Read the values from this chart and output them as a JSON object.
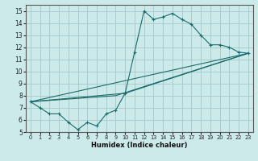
{
  "xlabel": "Humidex (Indice chaleur)",
  "ylabel": "",
  "bg_color": "#cceaea",
  "grid_color": "#aacccc",
  "line_color": "#1a6b6b",
  "xlim": [
    -0.5,
    23.5
  ],
  "ylim": [
    5,
    15.5
  ],
  "xticks": [
    0,
    1,
    2,
    3,
    4,
    5,
    6,
    7,
    8,
    9,
    10,
    11,
    12,
    13,
    14,
    15,
    16,
    17,
    18,
    19,
    20,
    21,
    22,
    23
  ],
  "yticks": [
    5,
    6,
    7,
    8,
    9,
    10,
    11,
    12,
    13,
    14,
    15
  ],
  "line1_x": [
    0,
    1,
    2,
    3,
    4,
    5,
    6,
    7,
    8,
    9,
    10,
    11,
    12,
    13,
    14,
    15,
    16,
    17,
    18,
    19,
    20,
    21,
    22,
    23
  ],
  "line1_y": [
    7.5,
    7.0,
    6.5,
    6.5,
    5.8,
    5.2,
    5.8,
    5.5,
    6.5,
    6.8,
    8.2,
    11.6,
    15.0,
    14.3,
    14.5,
    14.8,
    14.3,
    13.9,
    13.0,
    12.2,
    12.2,
    12.0,
    11.6,
    11.5
  ],
  "line2_x": [
    0,
    23
  ],
  "line2_y": [
    7.5,
    11.5
  ],
  "line3_x": [
    0,
    10,
    23
  ],
  "line3_y": [
    7.5,
    8.2,
    11.5
  ],
  "line4_x": [
    0,
    9,
    23
  ],
  "line4_y": [
    7.5,
    8.0,
    11.5
  ]
}
